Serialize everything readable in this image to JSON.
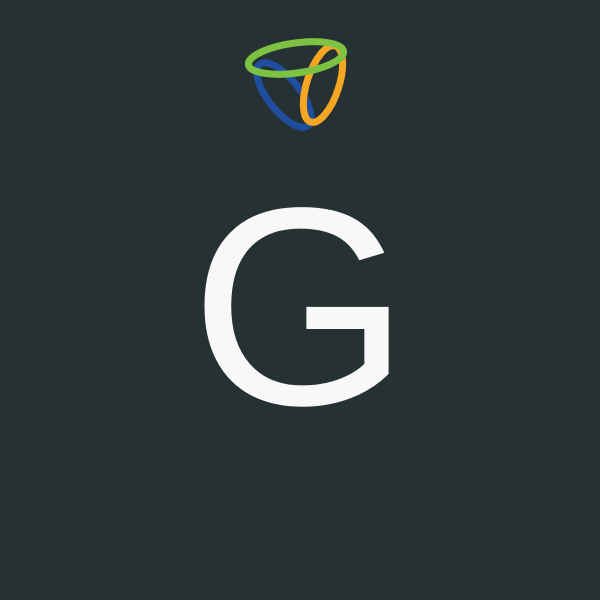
{
  "screen": {
    "background_color": "#263133"
  },
  "logo": {
    "icon": "tri-ring-logo-icon",
    "colors": {
      "green": "#7dc243",
      "orange": "#f5a623",
      "blue": "#1f4e9f"
    }
  },
  "avatar": {
    "letter": "G",
    "color": "#f8f8f8"
  }
}
